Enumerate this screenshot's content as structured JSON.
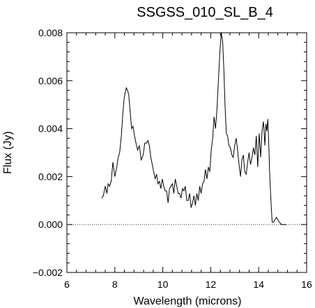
{
  "chart_data": {
    "type": "line",
    "title": "SSGSS_010_SL_B_4",
    "xlabel": "Wavelength (microns)",
    "ylabel": "Flux (Jy)",
    "xlim": [
      6,
      16
    ],
    "ylim": [
      -0.002,
      0.008
    ],
    "x_ticks": [
      6,
      8,
      10,
      12,
      14,
      16
    ],
    "y_ticks": [
      -0.002,
      0.0,
      0.002,
      0.004,
      0.006,
      0.008
    ],
    "x_tick_labels": [
      "6",
      "8",
      "10",
      "12",
      "14",
      "16"
    ],
    "y_tick_labels": [
      "−0.002",
      "0.000",
      "0.002",
      "0.004",
      "0.006",
      "0.008"
    ],
    "x_minor_per_major": 4,
    "y_minor_per_major": 4,
    "reference_line": {
      "y": 0.0,
      "style": "dotted"
    },
    "grid": false,
    "series": [
      {
        "color": "#000000",
        "x": [
          7.45,
          7.52,
          7.6,
          7.67,
          7.72,
          7.78,
          7.85,
          7.92,
          8.0,
          8.08,
          8.14,
          8.2,
          8.27,
          8.33,
          8.38,
          8.43,
          8.48,
          8.53,
          8.58,
          8.63,
          8.7,
          8.76,
          8.82,
          8.88,
          8.95,
          9.02,
          9.1,
          9.18,
          9.25,
          9.32,
          9.38,
          9.44,
          9.5,
          9.56,
          9.62,
          9.68,
          9.74,
          9.8,
          9.86,
          9.92,
          9.98,
          10.04,
          10.1,
          10.16,
          10.22,
          10.28,
          10.34,
          10.4,
          10.46,
          10.52,
          10.58,
          10.64,
          10.7,
          10.76,
          10.82,
          10.88,
          10.94,
          11.0,
          11.06,
          11.12,
          11.18,
          11.24,
          11.3,
          11.36,
          11.42,
          11.48,
          11.54,
          11.6,
          11.66,
          11.72,
          11.78,
          11.84,
          11.9,
          11.96,
          12.02,
          12.08,
          12.14,
          12.2,
          12.26,
          12.32,
          12.38,
          12.44,
          12.5,
          12.55,
          12.6,
          12.65,
          12.7,
          12.76,
          12.82,
          12.88,
          12.94,
          13.0,
          13.06,
          13.12,
          13.18,
          13.24,
          13.3,
          13.36,
          13.42,
          13.48,
          13.54,
          13.6,
          13.66,
          13.72,
          13.78,
          13.84,
          13.9,
          13.96,
          14.02,
          14.08,
          14.14,
          14.2,
          14.26,
          14.3,
          14.34,
          14.38,
          14.42,
          14.46,
          14.5,
          14.56,
          14.62,
          14.68,
          14.74,
          14.8,
          14.86,
          14.95,
          15.05,
          15.15
        ],
        "y": [
          0.0011,
          0.0012,
          0.0016,
          0.0013,
          0.0017,
          0.0016,
          0.0018,
          0.0026,
          0.002,
          0.0024,
          0.0028,
          0.003,
          0.0037,
          0.0046,
          0.0052,
          0.0055,
          0.0057,
          0.0056,
          0.0054,
          0.0048,
          0.004,
          0.0041,
          0.0037,
          0.0034,
          0.0031,
          0.0033,
          0.0027,
          0.0029,
          0.0034,
          0.0034,
          0.0035,
          0.0033,
          0.0028,
          0.0025,
          0.0022,
          0.0019,
          0.0021,
          0.0017,
          0.0018,
          0.0015,
          0.0019,
          0.0016,
          0.0014,
          0.0014,
          0.0009,
          0.0015,
          0.0016,
          0.0017,
          0.0013,
          0.0019,
          0.0016,
          0.0013,
          0.0013,
          0.0011,
          0.0015,
          0.0014,
          0.0016,
          0.001,
          0.001,
          0.0013,
          0.0007,
          0.0009,
          0.0012,
          0.0008,
          0.0013,
          0.001,
          0.0016,
          0.0013,
          0.0017,
          0.0018,
          0.0023,
          0.0019,
          0.0024,
          0.0022,
          0.0031,
          0.0036,
          0.0045,
          0.004,
          0.0048,
          0.006,
          0.0072,
          0.008,
          0.0076,
          0.0064,
          0.0049,
          0.0038,
          0.0037,
          0.0033,
          0.0032,
          0.0029,
          0.0028,
          0.0033,
          0.0036,
          0.0031,
          0.0025,
          0.002,
          0.0027,
          0.0029,
          0.0022,
          0.0021,
          0.0026,
          0.003,
          0.0025,
          0.0028,
          0.0032,
          0.0029,
          0.0037,
          0.0024,
          0.0038,
          0.0028,
          0.0039,
          0.0043,
          0.0033,
          0.0042,
          0.0039,
          0.0044,
          0.0034,
          0.0021,
          0.0012,
          0.0001,
          0.0001,
          0.0002,
          0.0003,
          0.0002,
          0.0001,
          0.0,
          0.0,
          0.0
        ]
      }
    ]
  }
}
